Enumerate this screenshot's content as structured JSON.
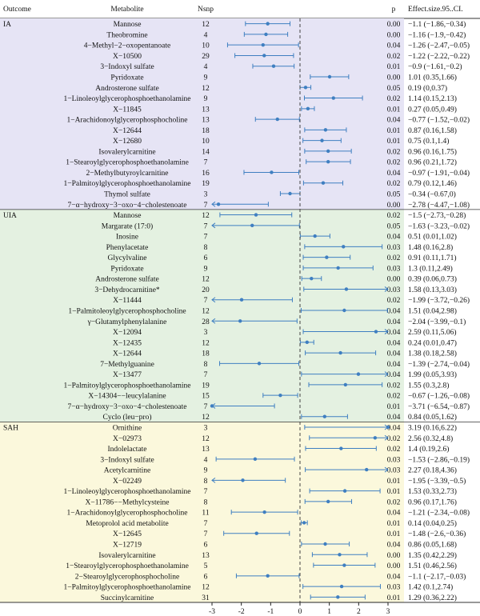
{
  "headers": {
    "outcome": "Outcome",
    "metabolite": "Metabolite",
    "nsnp": "Nsnp",
    "p": "p",
    "effect": "Effect.size.95..CI."
  },
  "colors": {
    "IA": "#e6e4f5",
    "UIA": "#e4f1e1",
    "SAH": "#fbf8dc",
    "point": "#3f7fc1",
    "zero": "#444444",
    "axis": "#222222"
  },
  "chart_data": {
    "type": "forest",
    "xlim": [
      -3,
      3
    ],
    "xticks": [
      -3,
      -2,
      -1,
      0,
      1,
      2,
      3
    ],
    "groups": [
      {
        "name": "IA",
        "rows": [
          {
            "metabolite": "Mannose",
            "nsnp": 12,
            "p": "0.00",
            "effect": "−1.1 (−1.86,−0.34)",
            "est": -1.1,
            "lo": -1.86,
            "hi": -0.34
          },
          {
            "metabolite": "Theobromine",
            "nsnp": 4,
            "p": "0.00",
            "effect": "−1.16 (−1.9,−0.42)",
            "est": -1.16,
            "lo": -1.9,
            "hi": -0.42
          },
          {
            "metabolite": "4−Methyl−2−oxopentanoate",
            "nsnp": 10,
            "p": "0.04",
            "effect": "−1.26 (−2.47,−0.05)",
            "est": -1.26,
            "lo": -2.47,
            "hi": -0.05
          },
          {
            "metabolite": "X−10500",
            "nsnp": 29,
            "p": "0.02",
            "effect": "−1.22 (−2.22,−0.22)",
            "est": -1.22,
            "lo": -2.22,
            "hi": -0.22
          },
          {
            "metabolite": "3−Indoxyl sulfate",
            "nsnp": 4,
            "p": "0.01",
            "effect": "−0.9 (−1.61,−0.2)",
            "est": -0.9,
            "lo": -1.61,
            "hi": -0.2
          },
          {
            "metabolite": "Pyridoxate",
            "nsnp": 9,
            "p": "0.00",
            "effect": "1.01 (0.35,1.66)",
            "est": 1.01,
            "lo": 0.35,
            "hi": 1.66
          },
          {
            "metabolite": "Androsterone sulfate",
            "nsnp": 12,
            "p": "0.05",
            "effect": "0.19 (0,0.37)",
            "est": 0.19,
            "lo": 0,
            "hi": 0.37
          },
          {
            "metabolite": "1−Linoleoylglycerophosphoethanolamine",
            "nsnp": 9,
            "p": "0.02",
            "effect": "1.14 (0.15,2.13)",
            "est": 1.14,
            "lo": 0.15,
            "hi": 2.13
          },
          {
            "metabolite": "X−11845",
            "nsnp": 13,
            "p": "0.01",
            "effect": "0.27 (0.05,0.49)",
            "est": 0.27,
            "lo": 0.05,
            "hi": 0.49
          },
          {
            "metabolite": "1−Arachidonoylglycerophosphocholine",
            "nsnp": 13,
            "p": "0.04",
            "effect": "−0.77 (−1.52,−0.02)",
            "est": -0.77,
            "lo": -1.52,
            "hi": -0.02
          },
          {
            "metabolite": "X−12644",
            "nsnp": 18,
            "p": "0.01",
            "effect": "0.87 (0.16,1.58)",
            "est": 0.87,
            "lo": 0.16,
            "hi": 1.58
          },
          {
            "metabolite": "X−12680",
            "nsnp": 10,
            "p": "0.01",
            "effect": "0.75 (0.1,1.4)",
            "est": 0.75,
            "lo": 0.1,
            "hi": 1.4
          },
          {
            "metabolite": "Isovalerylcarnitine",
            "nsnp": 14,
            "p": "0.02",
            "effect": "0.96 (0.16,1.75)",
            "est": 0.96,
            "lo": 0.16,
            "hi": 1.75
          },
          {
            "metabolite": "1−Stearoylglycerophosphoethanolamine",
            "nsnp": 7,
            "p": "0.02",
            "effect": "0.96 (0.21,1.72)",
            "est": 0.96,
            "lo": 0.21,
            "hi": 1.72
          },
          {
            "metabolite": "2−Methylbutyroylcarnitine",
            "nsnp": 16,
            "p": "0.04",
            "effect": "−0.97 (−1.91,−0.04)",
            "est": -0.97,
            "lo": -1.91,
            "hi": -0.04
          },
          {
            "metabolite": "1−Palmitoylglycerophosphoethanolamine",
            "nsnp": 19,
            "p": "0.02",
            "effect": "0.79 (0.12,1.46)",
            "est": 0.79,
            "lo": 0.12,
            "hi": 1.46
          },
          {
            "metabolite": "Thymol sulfate",
            "nsnp": 3,
            "p": "0.05",
            "effect": "−0.34 (−0.67,0)",
            "est": -0.34,
            "lo": -0.67,
            "hi": 0
          },
          {
            "metabolite": "7−α−hydroxy−3−oxo−4−cholestenoate",
            "nsnp": 7,
            "p": "0.00",
            "effect": "−2.78 (−4.47,−1.08)",
            "est": -2.78,
            "lo": -4.47,
            "hi": -1.08
          }
        ]
      },
      {
        "name": "UIA",
        "rows": [
          {
            "metabolite": "Mannose",
            "nsnp": 12,
            "p": "0.02",
            "effect": "−1.5 (−2.73,−0.28)",
            "est": -1.5,
            "lo": -2.73,
            "hi": -0.28
          },
          {
            "metabolite": "Margarate (17:0)",
            "nsnp": 7,
            "p": "0.05",
            "effect": "−1.63 (−3.23,−0.02)",
            "est": -1.63,
            "lo": -3.23,
            "hi": -0.02
          },
          {
            "metabolite": "Inosine",
            "nsnp": 7,
            "p": "0.04",
            "effect": "0.51 (0.01,1.02)",
            "est": 0.51,
            "lo": 0.01,
            "hi": 1.02
          },
          {
            "metabolite": "Phenylacetate",
            "nsnp": 8,
            "p": "0.03",
            "effect": "1.48 (0.16,2.8)",
            "est": 1.48,
            "lo": 0.16,
            "hi": 2.8
          },
          {
            "metabolite": "Glycylvaline",
            "nsnp": 6,
            "p": "0.02",
            "effect": "0.91 (0.11,1.71)",
            "est": 0.91,
            "lo": 0.11,
            "hi": 1.71
          },
          {
            "metabolite": "Pyridoxate",
            "nsnp": 9,
            "p": "0.03",
            "effect": "1.3 (0.11,2.49)",
            "est": 1.3,
            "lo": 0.11,
            "hi": 2.49
          },
          {
            "metabolite": "Androsterone sulfate",
            "nsnp": 12,
            "p": "0.00",
            "effect": "0.39 (0.06,0.73)",
            "est": 0.39,
            "lo": 0.06,
            "hi": 0.73
          },
          {
            "metabolite": "3−Dehydrocarnitine*",
            "nsnp": 20,
            "p": "0.03",
            "effect": "1.58 (0.13,3.03)",
            "est": 1.58,
            "lo": 0.13,
            "hi": 3.03
          },
          {
            "metabolite": "X−11444",
            "nsnp": 7,
            "p": "0.02",
            "effect": "−1.99 (−3.72,−0.26)",
            "est": -1.99,
            "lo": -3.72,
            "hi": -0.26
          },
          {
            "metabolite": "1−Palmitoleoylglycerophosphocholine",
            "nsnp": 12,
            "p": "0.04",
            "effect": "1.51 (0.04,2.98)",
            "est": 1.51,
            "lo": 0.04,
            "hi": 2.98
          },
          {
            "metabolite": "γ−Glutamylphenylalanine",
            "nsnp": 28,
            "p": "0.04",
            "effect": "−2.04 (−3.99,−0.1)",
            "est": -2.04,
            "lo": -3.99,
            "hi": -0.1
          },
          {
            "metabolite": "X−12094",
            "nsnp": 3,
            "p": "0.04",
            "effect": "2.59 (0.11,5.06)",
            "est": 2.59,
            "lo": 0.11,
            "hi": 5.06
          },
          {
            "metabolite": "X−12435",
            "nsnp": 12,
            "p": "0.04",
            "effect": "0.24 (0.01,0.47)",
            "est": 0.24,
            "lo": 0.01,
            "hi": 0.47
          },
          {
            "metabolite": "X−12644",
            "nsnp": 18,
            "p": "0.04",
            "effect": "1.38 (0.18,2.58)",
            "est": 1.38,
            "lo": 0.18,
            "hi": 2.58
          },
          {
            "metabolite": "7−Methylguanine",
            "nsnp": 8,
            "p": "0.04",
            "effect": "−1.39 (−2.74,−0.04)",
            "est": -1.39,
            "lo": -2.74,
            "hi": -0.04
          },
          {
            "metabolite": "X−13477",
            "nsnp": 7,
            "p": "0.04",
            "effect": "1.99 (0.05,3.93)",
            "est": 1.99,
            "lo": 0.05,
            "hi": 3.93
          },
          {
            "metabolite": "1−Palmitoylglycerophosphoethanolamine",
            "nsnp": 19,
            "p": "0.02",
            "effect": "1.55 (0.3,2.8)",
            "est": 1.55,
            "lo": 0.3,
            "hi": 2.8
          },
          {
            "metabolite": "X−14304−−leucylalanine",
            "nsnp": 15,
            "p": "0.02",
            "effect": "−0.67 (−1.26,−0.08)",
            "est": -0.67,
            "lo": -1.26,
            "hi": -0.08
          },
          {
            "metabolite": "7−α−hydroxy−3−oxo−4−cholestenoate",
            "nsnp": 7,
            "p": "0.01",
            "effect": "−3.71 (−6.54,−0.87)",
            "est": -3.71,
            "lo": -6.54,
            "hi": -0.87
          },
          {
            "metabolite": "Cyclo (leu−pro)",
            "nsnp": 12,
            "p": "0.04",
            "effect": "0.84 (0.05,1.62)",
            "est": 0.84,
            "lo": 0.05,
            "hi": 1.62
          }
        ]
      },
      {
        "name": "SAH",
        "rows": [
          {
            "metabolite": "Ornithine",
            "nsnp": 3,
            "p": "0.04",
            "effect": "3.19 (0.16,6.22)",
            "est": 3.19,
            "lo": 0.16,
            "hi": 6.22
          },
          {
            "metabolite": "X−02973",
            "nsnp": 12,
            "p": "0.02",
            "effect": "2.56 (0.32,4.8)",
            "est": 2.56,
            "lo": 0.32,
            "hi": 4.8
          },
          {
            "metabolite": "Indolelactate",
            "nsnp": 13,
            "p": "0.02",
            "effect": "1.4 (0.19,2.6)",
            "est": 1.4,
            "lo": 0.19,
            "hi": 2.6
          },
          {
            "metabolite": "3−Indoxyl sulfate",
            "nsnp": 4,
            "p": "0.03",
            "effect": "−1.53 (−2.86,−0.19)",
            "est": -1.53,
            "lo": -2.86,
            "hi": -0.19
          },
          {
            "metabolite": "Acetylcarnitine",
            "nsnp": 9,
            "p": "0.03",
            "effect": "2.27 (0.18,4.36)",
            "est": 2.27,
            "lo": 0.18,
            "hi": 4.36
          },
          {
            "metabolite": "X−02249",
            "nsnp": 8,
            "p": "0.01",
            "effect": "−1.95 (−3.39,−0.5)",
            "est": -1.95,
            "lo": -3.39,
            "hi": -0.5
          },
          {
            "metabolite": "1−Linoleoylglycerophosphoethanolamine",
            "nsnp": 7,
            "p": "0.01",
            "effect": "1.53 (0.33,2.73)",
            "est": 1.53,
            "lo": 0.33,
            "hi": 2.73
          },
          {
            "metabolite": "X−11786−−Methylcysteine",
            "nsnp": 8,
            "p": "0.02",
            "effect": "0.96 (0.17,1.76)",
            "est": 0.96,
            "lo": 0.17,
            "hi": 1.76
          },
          {
            "metabolite": "1−Arachidonoylglycerophosphocholine",
            "nsnp": 11,
            "p": "0.04",
            "effect": "−1.21 (−2.34,−0.08)",
            "est": -1.21,
            "lo": -2.34,
            "hi": -0.08
          },
          {
            "metabolite": "Metoprolol acid metabolite",
            "nsnp": 7,
            "p": "0.01",
            "effect": "0.14 (0.04,0.25)",
            "est": 0.14,
            "lo": 0.04,
            "hi": 0.25
          },
          {
            "metabolite": "X−12645",
            "nsnp": 7,
            "p": "0.01",
            "effect": "−1.48 (−2.6,−0.36)",
            "est": -1.48,
            "lo": -2.6,
            "hi": -0.36
          },
          {
            "metabolite": "X−12719",
            "nsnp": 6,
            "p": "0.04",
            "effect": "0.86 (0.05,1.68)",
            "est": 0.86,
            "lo": 0.05,
            "hi": 1.68
          },
          {
            "metabolite": "Isovalerylcarnitine",
            "nsnp": 13,
            "p": "0.00",
            "effect": "1.35 (0.42,2.29)",
            "est": 1.35,
            "lo": 0.42,
            "hi": 2.29
          },
          {
            "metabolite": "1−Stearoylglycerophosphoethanolamine",
            "nsnp": 5,
            "p": "0.00",
            "effect": "1.51 (0.46,2.56)",
            "est": 1.51,
            "lo": 0.46,
            "hi": 2.56
          },
          {
            "metabolite": "2−Stearoylglycerophosphocholine",
            "nsnp": 6,
            "p": "0.04",
            "effect": "−1.1 (−2.17,−0.03)",
            "est": -1.1,
            "lo": -2.17,
            "hi": -0.03
          },
          {
            "metabolite": "1−Palmitoylglycerophosphoethanolamine",
            "nsnp": 12,
            "p": "0.03",
            "effect": "1.42 (0.1,2.74)",
            "est": 1.42,
            "lo": 0.1,
            "hi": 2.74
          },
          {
            "metabolite": "Succinylcarnitine",
            "nsnp": 31,
            "p": "0.01",
            "effect": "1.29 (0.36,2.22)",
            "est": 1.29,
            "lo": 0.36,
            "hi": 2.22
          }
        ]
      }
    ]
  }
}
